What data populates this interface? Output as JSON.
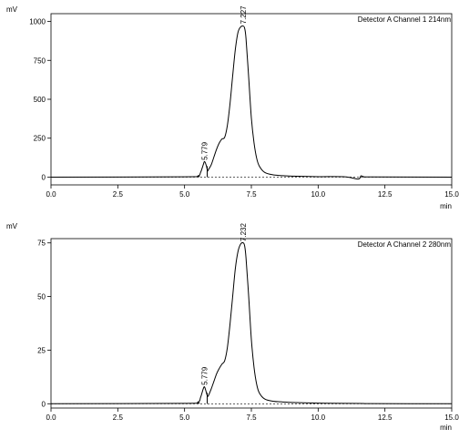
{
  "chart_data": [
    {
      "type": "line",
      "ylabel": "mV",
      "xlabel": "min",
      "channel_label": "Detector A Channel 1 214nm",
      "xlim": [
        0,
        15
      ],
      "ylim": [
        -50,
        1050
      ],
      "x_ticks": [
        0.0,
        2.5,
        5.0,
        7.5,
        10.0,
        12.5,
        15.0
      ],
      "x_tick_labels": [
        "0.0",
        "2.5",
        "5.0",
        "7.5",
        "10.0",
        "12.5",
        "15.0"
      ],
      "y_ticks": [
        0,
        250,
        500,
        750,
        1000
      ],
      "y_tick_labels": [
        "0",
        "250",
        "500",
        "750",
        "1000"
      ],
      "grid": false,
      "peaks": [
        {
          "label": "5.779",
          "x": 5.779,
          "y": 85
        },
        {
          "label": "7.227",
          "x": 7.227,
          "y": 960
        }
      ],
      "series": [
        {
          "x": [
            0,
            5.0,
            5.5,
            5.6,
            5.7,
            5.75,
            5.82,
            5.86,
            5.9,
            6.0,
            6.1,
            6.2,
            6.3,
            6.4,
            6.5,
            6.6,
            6.7,
            6.8,
            6.9,
            7.0,
            7.1,
            7.2,
            7.25,
            7.3,
            7.4,
            7.5,
            7.6,
            7.7,
            7.8,
            8.0,
            8.3,
            8.6,
            9.0,
            10.0,
            11.0,
            11.5,
            11.6,
            11.7,
            12.0,
            15.0
          ],
          "y": [
            0,
            2,
            8,
            30,
            80,
            100,
            70,
            40,
            50,
            80,
            130,
            180,
            220,
            245,
            255,
            330,
            470,
            650,
            820,
            930,
            965,
            970,
            955,
            890,
            640,
            380,
            220,
            120,
            70,
            30,
            15,
            10,
            6,
            3,
            2,
            -12,
            8,
            3,
            1,
            0
          ]
        }
      ]
    },
    {
      "type": "line",
      "ylabel": "mV",
      "xlabel": "min",
      "channel_label": "Detector A Channel 2 280nm",
      "xlim": [
        0,
        15
      ],
      "ylim": [
        -2,
        77
      ],
      "x_ticks": [
        0.0,
        2.5,
        5.0,
        7.5,
        10.0,
        12.5,
        15.0
      ],
      "x_tick_labels": [
        "0.0",
        "2.5",
        "5.0",
        "7.5",
        "10.0",
        "12.5",
        "15.0"
      ],
      "y_ticks": [
        0,
        25,
        50,
        75
      ],
      "y_tick_labels": [
        "0",
        "25",
        "50",
        "75"
      ],
      "grid": false,
      "peaks": [
        {
          "label": "5.779",
          "x": 5.779,
          "y": 7
        },
        {
          "label": "7.232",
          "x": 7.232,
          "y": 74
        }
      ],
      "series": [
        {
          "x": [
            0,
            5.0,
            5.5,
            5.6,
            5.7,
            5.75,
            5.82,
            5.86,
            5.9,
            6.0,
            6.1,
            6.2,
            6.3,
            6.4,
            6.5,
            6.6,
            6.7,
            6.8,
            6.9,
            7.0,
            7.1,
            7.2,
            7.25,
            7.3,
            7.4,
            7.5,
            7.6,
            7.7,
            7.8,
            8.0,
            8.3,
            8.6,
            9.0,
            10.0,
            11.0,
            11.7,
            12.0,
            15.0
          ],
          "y": [
            0,
            0.2,
            0.8,
            3,
            7,
            7.8,
            5,
            3.5,
            4,
            7,
            10.5,
            14,
            16.5,
            18.5,
            20,
            26,
            37,
            50,
            63,
            71,
            74.5,
            75,
            73.5,
            68,
            50,
            30,
            17,
            9,
            5,
            2.2,
            1.2,
            0.9,
            0.6,
            0.3,
            0.2,
            0.1,
            0.05,
            0
          ]
        }
      ]
    }
  ]
}
